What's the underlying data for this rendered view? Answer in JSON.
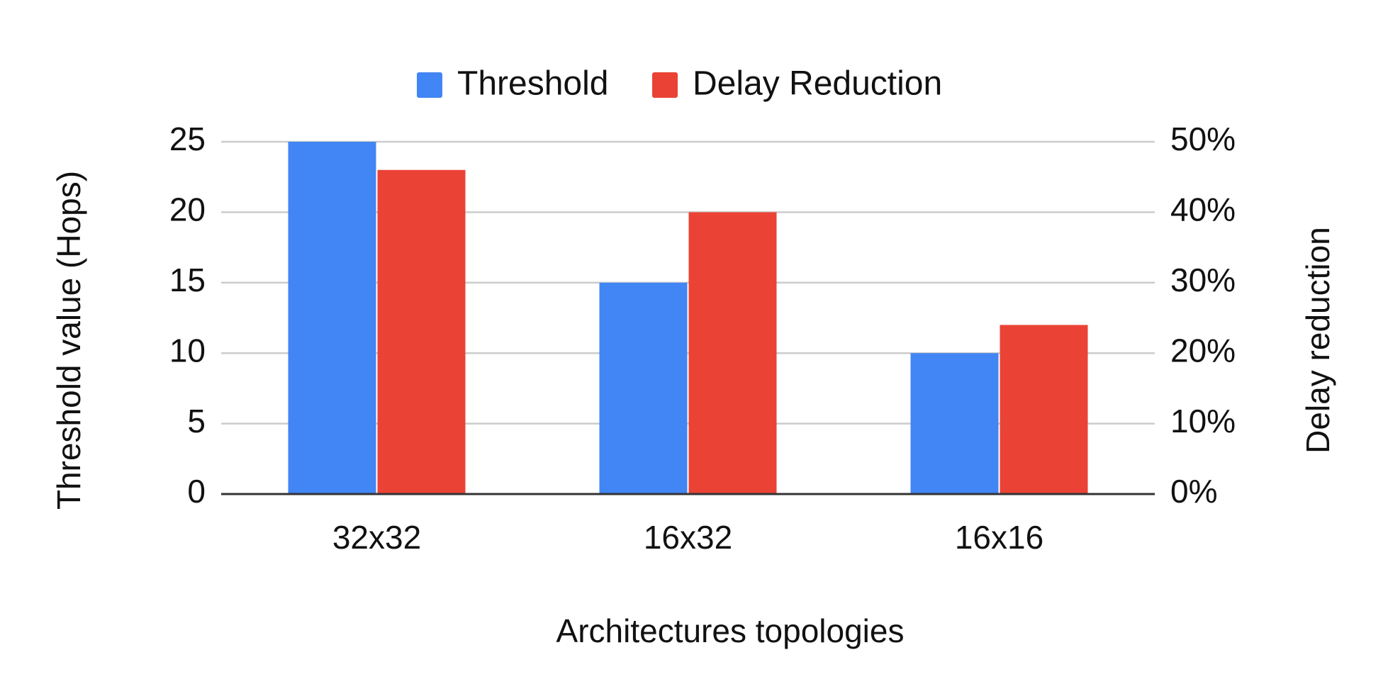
{
  "chart_data": {
    "type": "bar",
    "x_label": "Architectures topologies",
    "y_label": "Threshold value (Hops)",
    "y2_label": "Delay reduction",
    "categories": [
      "32x32",
      "16x32",
      "16x16"
    ],
    "series": [
      {
        "name": "Threshold",
        "color": "#4285f4",
        "values": [
          25,
          15,
          10
        ]
      },
      {
        "name": "Delay Reduction",
        "color": "#ea4335",
        "values": [
          46,
          40,
          24
        ],
        "axis": "y2"
      }
    ],
    "ylim": [
      0,
      25
    ],
    "yticks": [
      0,
      5,
      10,
      15,
      20,
      25
    ],
    "y2lim": [
      0,
      50
    ],
    "y2ticks": [
      {
        "value": 0,
        "label": "0%"
      },
      {
        "value": 10,
        "label": "10%"
      },
      {
        "value": 20,
        "label": "20%"
      },
      {
        "value": 30,
        "label": "30%"
      },
      {
        "value": 40,
        "label": "40%"
      },
      {
        "value": 50,
        "label": "50%"
      }
    ],
    "grid": true,
    "legend": "top"
  }
}
